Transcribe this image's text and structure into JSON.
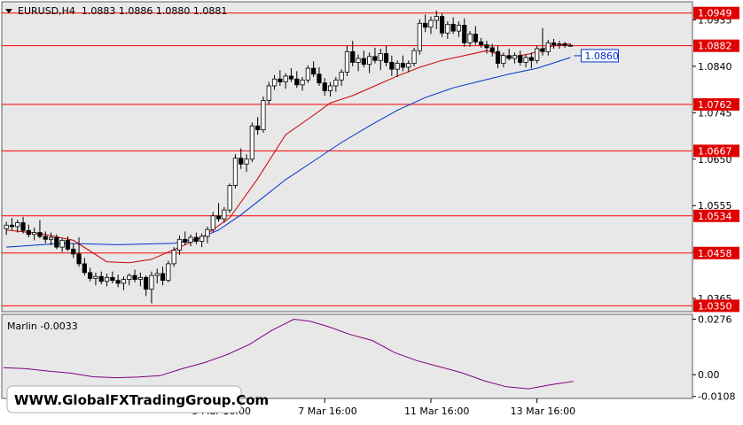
{
  "header": {
    "symbol_line": "EURUSD,H4  1.0883 1.0886 1.0880 1.0881"
  },
  "marlin": {
    "label": "Marlin -0.0033"
  },
  "watermark": "WWW.GlobalFXTradingGroup.Com",
  "colors": {
    "background": "#e8e8e8",
    "bull": "#ffffff",
    "bear": "#000000",
    "level_line": "#ff0000",
    "ma_fast": "#cc0000",
    "ma_slow": "#0033cc",
    "marlin": "#800080",
    "label_box": "#e00000"
  },
  "chart_data": [
    {
      "type": "candlestick",
      "title": "EURUSD,H4",
      "ohlc_header": {
        "open": 1.0883,
        "high": 1.0886,
        "low": 1.088,
        "close": 1.0881
      },
      "y_ticks": [
        "1.0935",
        "1.0840",
        "1.0745",
        "1.0650",
        "1.0555",
        "1.0460",
        "1.0365"
      ],
      "ylim": [
        1.0338,
        1.0972
      ],
      "x_ticks": [
        {
          "label": "5 Mar 16:00",
          "index": 38
        },
        {
          "label": "7 Mar 16:00",
          "index": 57
        },
        {
          "label": "11 Mar 16:00",
          "index": 76
        },
        {
          "label": "13 Mar 16:00",
          "index": 95
        }
      ],
      "levels": [
        {
          "label": "1.0949",
          "value": 1.0949
        },
        {
          "label": "1.0882",
          "value": 1.0882
        },
        {
          "label": "1.0762",
          "value": 1.0762
        },
        {
          "label": "1.0667",
          "value": 1.0667
        },
        {
          "label": "1.0534",
          "value": 1.0534
        },
        {
          "label": "1.0458",
          "value": 1.0458
        },
        {
          "label": "1.0350",
          "value": 1.035
        }
      ],
      "price_marker": "1.0860",
      "candles": [
        [
          1.0508,
          1.0522,
          1.0495,
          1.0515
        ],
        [
          1.0515,
          1.053,
          1.0505,
          1.0512
        ],
        [
          1.0512,
          1.0526,
          1.05,
          1.052
        ],
        [
          1.052,
          1.0532,
          1.0498,
          1.0504
        ],
        [
          1.0504,
          1.0516,
          1.049,
          1.0496
        ],
        [
          1.0496,
          1.051,
          1.0484,
          1.05
        ],
        [
          1.05,
          1.0525,
          1.0488,
          1.0492
        ],
        [
          1.0492,
          1.0502,
          1.0478,
          1.0486
        ],
        [
          1.0486,
          1.05,
          1.0474,
          1.049
        ],
        [
          1.049,
          1.0496,
          1.0466,
          1.047
        ],
        [
          1.047,
          1.0488,
          1.046,
          1.0484
        ],
        [
          1.0484,
          1.0492,
          1.0462,
          1.0466
        ],
        [
          1.0466,
          1.0478,
          1.0448,
          1.0456
        ],
        [
          1.0456,
          1.049,
          1.043,
          1.0436
        ],
        [
          1.0436,
          1.0448,
          1.0412,
          1.0418
        ],
        [
          1.0418,
          1.0428,
          1.04,
          1.0406
        ],
        [
          1.0406,
          1.0418,
          1.0392,
          1.041
        ],
        [
          1.041,
          1.042,
          1.0394,
          1.04
        ],
        [
          1.04,
          1.0416,
          1.039,
          1.0408
        ],
        [
          1.0408,
          1.042,
          1.0396,
          1.0402
        ],
        [
          1.0402,
          1.0414,
          1.0388,
          1.0396
        ],
        [
          1.0396,
          1.041,
          1.0382,
          1.0404
        ],
        [
          1.0404,
          1.0416,
          1.0392,
          1.0412
        ],
        [
          1.0412,
          1.0424,
          1.0398,
          1.0404
        ],
        [
          1.0404,
          1.0418,
          1.039,
          1.0408
        ],
        [
          1.0408,
          1.0412,
          1.037,
          1.0384
        ],
        [
          1.0384,
          1.042,
          1.0355,
          1.0412
        ],
        [
          1.0412,
          1.0426,
          1.0396,
          1.0416
        ],
        [
          1.0416,
          1.043,
          1.0392,
          1.0402
        ],
        [
          1.0402,
          1.0442,
          1.0398,
          1.0436
        ],
        [
          1.0436,
          1.047,
          1.043,
          1.0464
        ],
        [
          1.0464,
          1.0494,
          1.0454,
          1.0486
        ],
        [
          1.0486,
          1.0502,
          1.0474,
          1.048
        ],
        [
          1.048,
          1.0496,
          1.0472,
          1.049
        ],
        [
          1.049,
          1.05,
          1.0476,
          1.0482
        ],
        [
          1.0482,
          1.0498,
          1.047,
          1.0492
        ],
        [
          1.0492,
          1.0512,
          1.0478,
          1.0506
        ],
        [
          1.0506,
          1.0542,
          1.05,
          1.0534
        ],
        [
          1.0534,
          1.056,
          1.0522,
          1.0528
        ],
        [
          1.0528,
          1.0552,
          1.052,
          1.0546
        ],
        [
          1.0546,
          1.06,
          1.054,
          1.0596
        ],
        [
          1.0596,
          1.066,
          1.059,
          1.0652
        ],
        [
          1.0652,
          1.0672,
          1.063,
          1.064
        ],
        [
          1.064,
          1.066,
          1.0624,
          1.065
        ],
        [
          1.065,
          1.0725,
          1.0644,
          1.0718
        ],
        [
          1.0718,
          1.0736,
          1.07,
          1.071
        ],
        [
          1.071,
          1.0778,
          1.0704,
          1.077
        ],
        [
          1.077,
          1.0808,
          1.0762,
          1.08
        ],
        [
          1.08,
          1.0822,
          1.0792,
          1.0814
        ],
        [
          1.0814,
          1.0832,
          1.08,
          1.0808
        ],
        [
          1.0808,
          1.0826,
          1.0794,
          1.082
        ],
        [
          1.082,
          1.0836,
          1.0808,
          1.0814
        ],
        [
          1.0814,
          1.083,
          1.0796,
          1.0802
        ],
        [
          1.0802,
          1.0818,
          1.079,
          1.0812
        ],
        [
          1.0812,
          1.0842,
          1.0806,
          1.0836
        ],
        [
          1.0836,
          1.085,
          1.0818,
          1.0824
        ],
        [
          1.0824,
          1.0838,
          1.08,
          1.0806
        ],
        [
          1.0806,
          1.0816,
          1.078,
          1.079
        ],
        [
          1.079,
          1.0808,
          1.0778,
          1.08
        ],
        [
          1.08,
          1.0818,
          1.0788,
          1.0812
        ],
        [
          1.0812,
          1.0834,
          1.08,
          1.0828
        ],
        [
          1.0828,
          1.0882,
          1.082,
          1.087
        ],
        [
          1.087,
          1.0892,
          1.084,
          1.0848
        ],
        [
          1.0848,
          1.0864,
          1.083,
          1.0856
        ],
        [
          1.0856,
          1.0872,
          1.0838,
          1.0844
        ],
        [
          1.0844,
          1.0868,
          1.0826,
          1.086
        ],
        [
          1.086,
          1.0878,
          1.0846,
          1.0852
        ],
        [
          1.0852,
          1.0876,
          1.0832,
          1.0866
        ],
        [
          1.0866,
          1.0882,
          1.084,
          1.0848
        ],
        [
          1.0848,
          1.0862,
          1.082,
          1.0834
        ],
        [
          1.0834,
          1.0852,
          1.0818,
          1.0846
        ],
        [
          1.0846,
          1.0862,
          1.083,
          1.0838
        ],
        [
          1.0838,
          1.0852,
          1.0828,
          1.0846
        ],
        [
          1.0846,
          1.0878,
          1.084,
          1.0872
        ],
        [
          1.0872,
          1.0936,
          1.0864,
          1.0928
        ],
        [
          1.0928,
          1.0946,
          1.091,
          1.092
        ],
        [
          1.092,
          1.0942,
          1.0906,
          1.0934
        ],
        [
          1.0934,
          1.0954,
          1.0916,
          1.0942
        ],
        [
          1.0942,
          1.0948,
          1.09,
          1.0908
        ],
        [
          1.0908,
          1.0932,
          1.0896,
          1.0926
        ],
        [
          1.0926,
          1.094,
          1.0906,
          1.0912
        ],
        [
          1.0912,
          1.0932,
          1.09,
          1.0924
        ],
        [
          1.0924,
          1.0938,
          1.088,
          1.0888
        ],
        [
          1.0888,
          1.0912,
          1.088,
          1.0906
        ],
        [
          1.0906,
          1.0922,
          1.0884,
          1.089
        ],
        [
          1.089,
          1.0898,
          1.0878,
          1.0884
        ],
        [
          1.0884,
          1.0892,
          1.0866,
          1.0878
        ],
        [
          1.0878,
          1.0886,
          1.086,
          1.087
        ],
        [
          1.087,
          1.0882,
          1.0836,
          1.0846
        ],
        [
          1.0846,
          1.0868,
          1.0838,
          1.0862
        ],
        [
          1.0862,
          1.0876,
          1.0852,
          1.0856
        ],
        [
          1.0856,
          1.0868,
          1.0846,
          1.0862
        ],
        [
          1.0862,
          1.0872,
          1.0842,
          1.0848
        ],
        [
          1.0848,
          1.0864,
          1.0838,
          1.0858
        ],
        [
          1.0858,
          1.0868,
          1.0836,
          1.0852
        ],
        [
          1.0852,
          1.0882,
          1.0846,
          1.0876
        ],
        [
          1.0876,
          1.0918,
          1.0862,
          1.087
        ],
        [
          1.087,
          1.0894,
          1.0862,
          1.0888
        ],
        [
          1.0888,
          1.0896,
          1.0876,
          1.0884
        ],
        [
          1.0884,
          1.0892,
          1.0876,
          1.0886
        ],
        [
          1.0886,
          1.089,
          1.0878,
          1.0883
        ],
        [
          1.0883,
          1.0886,
          1.088,
          1.0881
        ]
      ],
      "ma_fast": [
        [
          0,
          1.0505
        ],
        [
          6,
          1.0498
        ],
        [
          12,
          1.0484
        ],
        [
          18,
          1.044
        ],
        [
          22,
          1.0438
        ],
        [
          26,
          1.0445
        ],
        [
          30,
          1.0465
        ],
        [
          35,
          1.049
        ],
        [
          40,
          1.053
        ],
        [
          45,
          1.061
        ],
        [
          50,
          1.07
        ],
        [
          55,
          1.074
        ],
        [
          58,
          1.0765
        ],
        [
          62,
          1.078
        ],
        [
          66,
          1.08
        ],
        [
          70,
          1.082
        ],
        [
          74,
          1.0838
        ],
        [
          78,
          1.0852
        ],
        [
          82,
          1.0862
        ],
        [
          86,
          1.0872
        ],
        [
          90,
          1.0858
        ],
        [
          94,
          1.0866
        ],
        [
          97,
          1.088
        ],
        [
          101,
          1.0886
        ]
      ],
      "ma_slow": [
        [
          0,
          1.047
        ],
        [
          10,
          1.0478
        ],
        [
          20,
          1.0475
        ],
        [
          30,
          1.0478
        ],
        [
          34,
          1.0486
        ],
        [
          38,
          1.0505
        ],
        [
          42,
          1.0536
        ],
        [
          46,
          1.0572
        ],
        [
          50,
          1.0608
        ],
        [
          55,
          1.0646
        ],
        [
          60,
          1.0684
        ],
        [
          65,
          1.0718
        ],
        [
          70,
          1.075
        ],
        [
          75,
          1.0776
        ],
        [
          80,
          1.0796
        ],
        [
          85,
          1.081
        ],
        [
          90,
          1.0824
        ],
        [
          95,
          1.0836
        ],
        [
          101,
          1.0858
        ]
      ],
      "marlin": {
        "label": "Marlin",
        "value": -0.0033,
        "y_ticks": [
          "0.0276",
          "0.00",
          "-0.0108"
        ],
        "ylim": [
          -0.0118,
          0.03
        ],
        "points": [
          [
            0,
            0.0035
          ],
          [
            4,
            0.003
          ],
          [
            8,
            0.0018
          ],
          [
            12,
            0.0008
          ],
          [
            16,
            -0.001
          ],
          [
            20,
            -0.0015
          ],
          [
            24,
            -0.0012
          ],
          [
            28,
            -0.0005
          ],
          [
            32,
            0.003
          ],
          [
            36,
            0.006
          ],
          [
            40,
            0.01
          ],
          [
            44,
            0.015
          ],
          [
            48,
            0.022
          ],
          [
            52,
            0.0276
          ],
          [
            55,
            0.0265
          ],
          [
            58,
            0.024
          ],
          [
            62,
            0.02
          ],
          [
            66,
            0.017
          ],
          [
            70,
            0.011
          ],
          [
            74,
            0.007
          ],
          [
            78,
            0.004
          ],
          [
            82,
            0.001
          ],
          [
            86,
            -0.003
          ],
          [
            90,
            -0.006
          ],
          [
            94,
            -0.007
          ],
          [
            98,
            -0.005
          ],
          [
            102,
            -0.0033
          ]
        ]
      }
    }
  ]
}
